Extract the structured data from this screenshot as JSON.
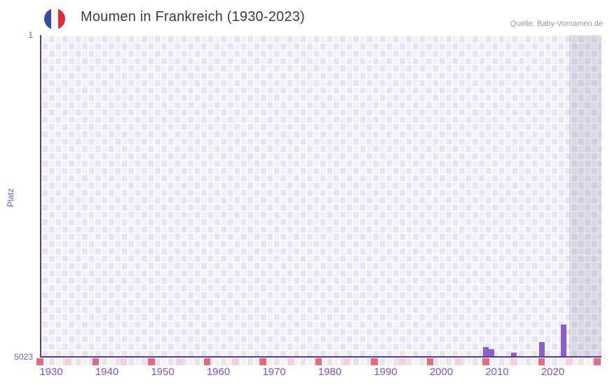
{
  "header": {
    "title": "Moumen in Frankreich (1930-2023)",
    "source": "Quelle: Baby-Vornamen.de",
    "flag_icon": "france-flag-icon"
  },
  "theme": {
    "accent_purple": "#7b57b4",
    "axis_line_purple": "#5b3a96",
    "bar_purple": "#8d5ec7",
    "grid_cell_light": "#f3f0fa",
    "grid_cell_dark": "#e8e3f3",
    "band_overlay": "rgba(103,99,132,0.17)",
    "marker_dark": "#e06e7a",
    "marker_light": "#f2cfdc",
    "title_color": "#3d3d3d",
    "source_color": "#999999",
    "flag_blue": "#3b4da1",
    "flag_white": "#f8f8f8",
    "flag_red": "#df2e3a"
  },
  "chart_data": {
    "type": "bar",
    "title": "Moumen in Frankreich (1930-2023)",
    "xlabel": "",
    "ylabel": "Platz",
    "grid": true,
    "legend": false,
    "x_range": [
      1928,
      2029
    ],
    "x_ticks": [
      1930,
      1940,
      1950,
      1960,
      1970,
      1980,
      1990,
      2000,
      2010,
      2020
    ],
    "y_axis": {
      "min": 1,
      "max": 5023,
      "inverted": true,
      "top_label": "1",
      "bottom_label": "5023"
    },
    "series": [
      {
        "name": "Moumen",
        "points": [
          {
            "year": 2008,
            "rank": 4881
          },
          {
            "year": 2009,
            "rank": 4914
          },
          {
            "year": 2013,
            "rank": 4968
          },
          {
            "year": 2018,
            "rank": 4805
          },
          {
            "year": 2022,
            "rank": 4532
          }
        ]
      }
    ],
    "recent_band": {
      "start_year": 2023
    },
    "bottom_markers": {
      "interval_years": 5,
      "dark_years": [
        1928,
        1938,
        1948,
        1958,
        1968,
        1978,
        1988,
        1998,
        2008,
        2018,
        2028
      ],
      "light_years": [
        1933,
        1943,
        1953,
        1963,
        1973,
        1983,
        1993,
        2003,
        2013,
        2023
      ]
    }
  }
}
